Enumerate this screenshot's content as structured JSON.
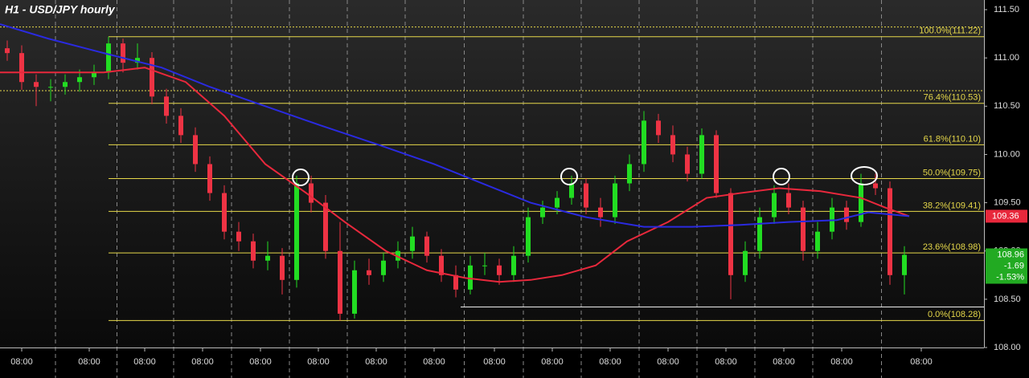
{
  "chart_data": {
    "type": "candlestick",
    "title": "H1 - USD/JPY hourly",
    "xlim": [
      0,
      408
    ],
    "ylim": [
      108.0,
      111.6
    ],
    "yticks": [
      {
        "value": 108.0,
        "label": "108.00"
      },
      {
        "value": 108.5,
        "label": "108.50"
      },
      {
        "value": 109.0,
        "label": "109.00"
      },
      {
        "value": 109.5,
        "label": "109.50"
      },
      {
        "value": 110.0,
        "label": "110.00"
      },
      {
        "value": 110.5,
        "label": "110.50"
      },
      {
        "value": 111.0,
        "label": "111.00"
      },
      {
        "value": 111.5,
        "label": "111.50"
      }
    ],
    "xticks": [
      {
        "value": 9,
        "label": "08:00"
      },
      {
        "value": 37,
        "label": "08:00"
      },
      {
        "value": 60,
        "label": "08:00"
      },
      {
        "value": 84,
        "label": "08:00"
      },
      {
        "value": 108,
        "label": "08:00"
      },
      {
        "value": 132,
        "label": "08:00"
      },
      {
        "value": 156,
        "label": "08:00"
      },
      {
        "value": 180,
        "label": "08:00"
      },
      {
        "value": 205,
        "label": "08:00"
      },
      {
        "value": 229,
        "label": "08:00"
      },
      {
        "value": 253,
        "label": "08:00"
      },
      {
        "value": 277,
        "label": "08:00"
      },
      {
        "value": 301,
        "label": "08:00"
      },
      {
        "value": 325,
        "label": "08:00"
      },
      {
        "value": 349,
        "label": "08:00"
      },
      {
        "value": 382,
        "label": "08:00"
      }
    ],
    "up_color": "#22dd22",
    "down_color": "#ee3344",
    "x": [
      3,
      9,
      15,
      21,
      27,
      33,
      39,
      45,
      51,
      57,
      63,
      69,
      75,
      81,
      87,
      93,
      99,
      105,
      111,
      117,
      123,
      129,
      135,
      141,
      147,
      153,
      159,
      165,
      171,
      177,
      183,
      189,
      195,
      201,
      207,
      213,
      219,
      225,
      231,
      237,
      243,
      249,
      255,
      261,
      267,
      273,
      279,
      285,
      291,
      297,
      303,
      309,
      315,
      321,
      327,
      333,
      339,
      345,
      351,
      357,
      363,
      369,
      375
    ],
    "open": [
      111.1,
      111.05,
      110.75,
      110.7,
      110.7,
      110.75,
      110.8,
      110.85,
      111.15,
      110.95,
      111.0,
      110.6,
      110.4,
      110.2,
      109.9,
      109.6,
      109.2,
      109.1,
      108.9,
      108.95,
      108.7,
      109.7,
      109.5,
      109.0,
      108.35,
      108.8,
      108.75,
      108.9,
      109.0,
      109.15,
      108.95,
      108.75,
      108.6,
      108.85,
      108.85,
      108.75,
      108.95,
      109.35,
      109.45,
      109.55,
      109.7,
      109.45,
      109.35,
      109.7,
      109.9,
      110.35,
      110.2,
      110.0,
      109.8,
      110.2,
      109.6,
      108.75,
      109.0,
      109.35,
      109.6,
      109.45,
      109.0,
      109.2,
      109.45,
      109.3,
      109.7,
      109.65,
      108.75
    ],
    "high": [
      111.18,
      111.13,
      110.83,
      110.78,
      110.83,
      110.88,
      110.93,
      111.22,
      111.2,
      111.15,
      111.06,
      110.68,
      110.48,
      110.28,
      109.98,
      109.68,
      109.3,
      109.18,
      109.1,
      109.03,
      109.78,
      109.78,
      109.58,
      109.3,
      108.9,
      108.92,
      108.98,
      109.1,
      109.25,
      109.2,
      109.02,
      108.85,
      108.95,
      108.98,
      108.92,
      109.05,
      109.45,
      109.52,
      109.62,
      109.78,
      109.75,
      109.55,
      109.78,
      110.0,
      110.45,
      110.42,
      110.3,
      110.08,
      110.27,
      110.25,
      109.65,
      109.1,
      109.45,
      109.68,
      109.7,
      109.52,
      109.3,
      109.55,
      109.52,
      109.8,
      109.8,
      109.72,
      109.05
    ],
    "low": [
      110.97,
      110.67,
      110.5,
      110.55,
      110.62,
      110.65,
      110.72,
      110.78,
      110.85,
      110.88,
      110.52,
      110.32,
      110.12,
      109.82,
      109.52,
      109.12,
      109.0,
      108.82,
      108.8,
      108.55,
      108.62,
      109.4,
      108.92,
      108.28,
      108.3,
      108.65,
      108.68,
      108.82,
      108.92,
      108.88,
      108.68,
      108.52,
      108.55,
      108.75,
      108.65,
      108.68,
      108.88,
      109.28,
      109.38,
      109.48,
      109.38,
      109.25,
      109.28,
      109.62,
      109.82,
      110.12,
      109.92,
      109.72,
      109.75,
      109.55,
      108.5,
      108.68,
      108.92,
      109.28,
      109.38,
      108.9,
      108.92,
      109.12,
      109.22,
      109.25,
      109.58,
      108.65,
      108.55
    ],
    "close": [
      111.05,
      110.75,
      110.7,
      110.7,
      110.75,
      110.8,
      110.85,
      111.15,
      110.95,
      111.0,
      110.6,
      110.4,
      110.2,
      109.9,
      109.6,
      109.2,
      109.1,
      108.9,
      108.95,
      108.7,
      109.7,
      109.5,
      109.0,
      108.35,
      108.8,
      108.75,
      108.9,
      109.0,
      109.15,
      108.95,
      108.75,
      108.6,
      108.85,
      108.85,
      108.75,
      108.95,
      109.35,
      109.45,
      109.55,
      109.7,
      109.45,
      109.35,
      109.7,
      109.9,
      110.35,
      110.2,
      110.0,
      109.8,
      110.2,
      109.6,
      108.75,
      109.0,
      109.35,
      109.6,
      109.45,
      109.0,
      109.2,
      109.45,
      109.3,
      109.7,
      109.65,
      108.75,
      108.96
    ],
    "moving_averages": [
      {
        "color": "#e8283c",
        "x": [
          0,
          43,
          60,
          77,
          93,
          110,
          127,
          143,
          160,
          177,
          193,
          207,
          220,
          233,
          247,
          260,
          277,
          293,
          307,
          323,
          340,
          357,
          367,
          377
        ],
        "values": [
          110.85,
          110.85,
          110.9,
          110.75,
          110.4,
          109.9,
          109.6,
          109.3,
          109.0,
          108.8,
          108.72,
          108.68,
          108.7,
          108.75,
          108.85,
          109.1,
          109.3,
          109.55,
          109.6,
          109.65,
          109.62,
          109.55,
          109.45,
          109.36
        ]
      },
      {
        "color": "#2a2ae0",
        "x": [
          0,
          20,
          43,
          67,
          87,
          110,
          133,
          157,
          180,
          200,
          220,
          243,
          267,
          287,
          307,
          327,
          347,
          360,
          377
        ],
        "values": [
          111.35,
          111.2,
          111.05,
          110.9,
          110.7,
          110.5,
          110.3,
          110.1,
          109.9,
          109.7,
          109.5,
          109.35,
          109.25,
          109.25,
          109.27,
          109.3,
          109.32,
          109.4,
          109.36
        ]
      }
    ],
    "fib_color": "#e6d84a",
    "fib_start": 45,
    "fib_levels": [
      {
        "label": "100.0%(111.22)",
        "value": 111.22
      },
      {
        "label": "76.4%(110.53)",
        "value": 110.53
      },
      {
        "label": "61.8%(110.10)",
        "value": 110.1
      },
      {
        "label": "50.0%(109.75)",
        "value": 109.75
      },
      {
        "label": "38.2%(109.41)",
        "value": 109.41
      },
      {
        "label": "23.6%(108.98)",
        "value": 108.98
      },
      {
        "label": "0.0%(108.28)",
        "value": 108.28
      }
    ],
    "dotted_levels": [
      111.32,
      110.66
    ],
    "support": {
      "value": 108.42,
      "x": [
        191,
        408
      ]
    },
    "ma_price_label": {
      "text": "109.36",
      "value": 109.36,
      "color": "#e8283c"
    },
    "last_price_label": {
      "lines": [
        "108.96",
        "-1.69",
        "-1.53%"
      ],
      "value": 108.96,
      "color": "#22aa22"
    }
  }
}
